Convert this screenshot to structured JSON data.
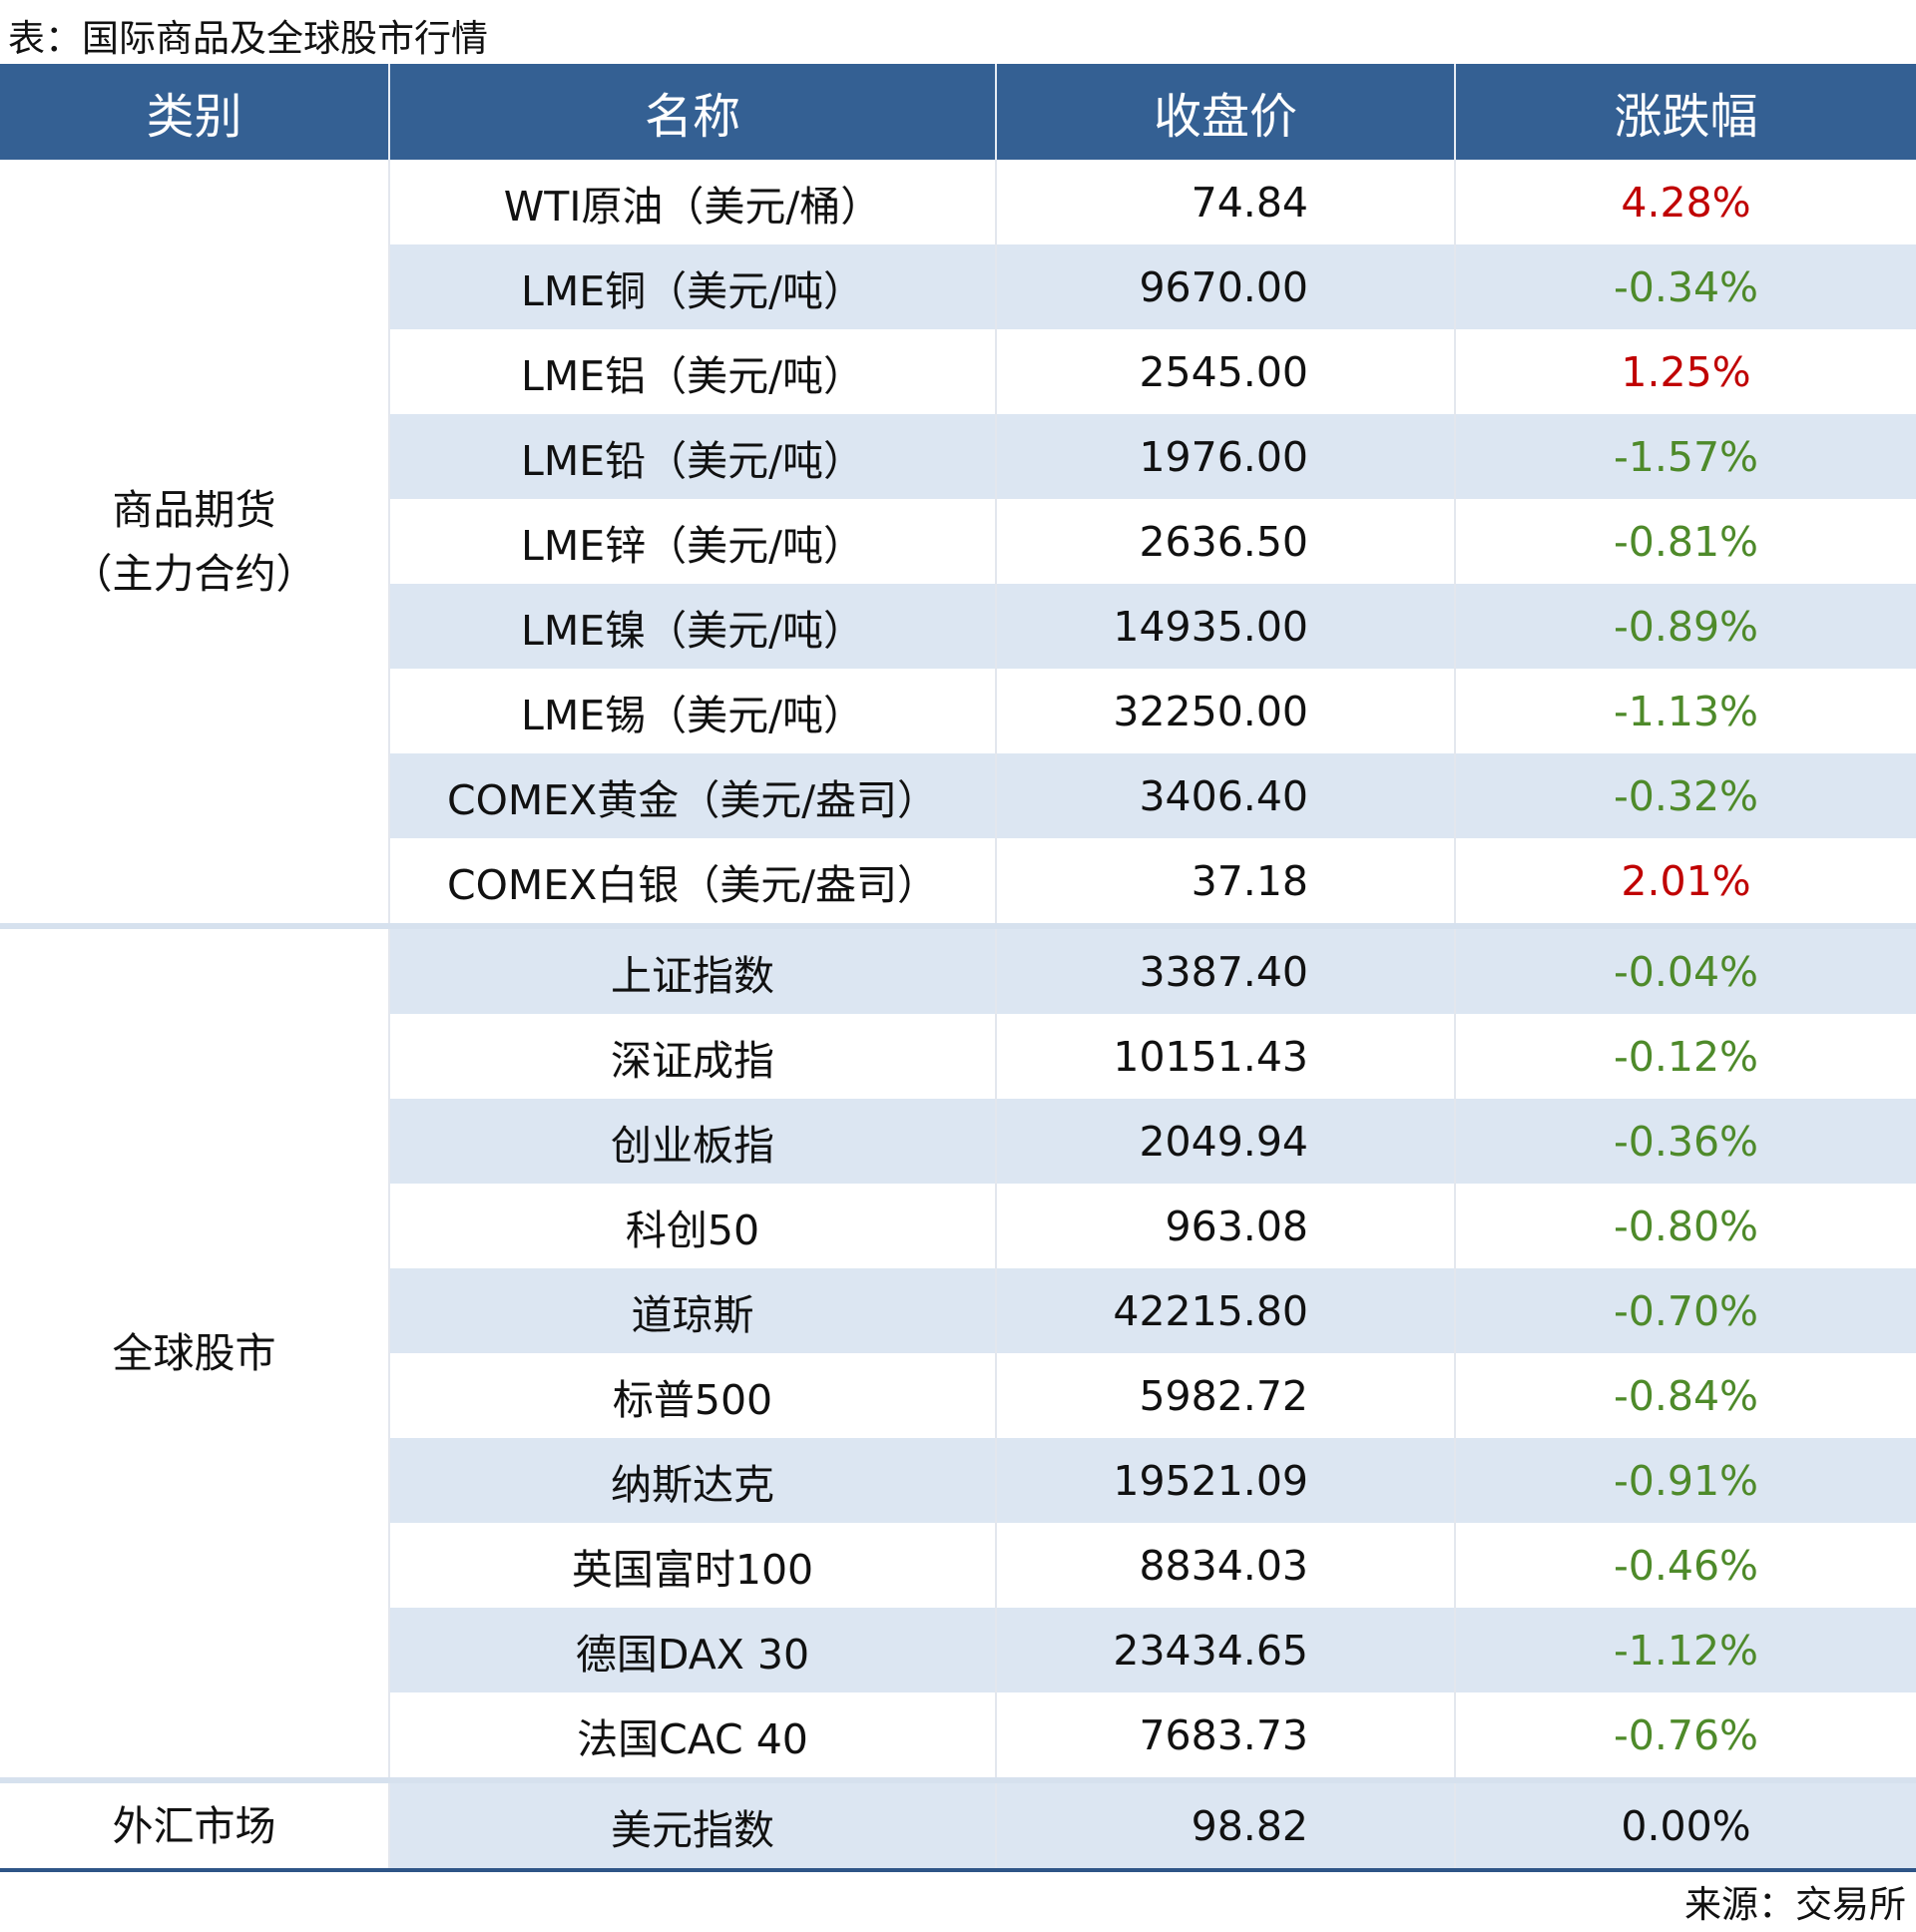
{
  "title": "表：国际商品及全球股市行情",
  "table": {
    "headers": [
      "类别",
      "名称",
      "收盘价",
      "涨跌幅"
    ],
    "groups": [
      {
        "category": "商品期货\n（主力合约）",
        "rows": [
          [
            "WTI原油（美元/桶）",
            "74.84",
            "4.28%"
          ],
          [
            "LME铜（美元/吨）",
            "9670.00",
            "-0.34%"
          ],
          [
            "LME铝（美元/吨）",
            "2545.00",
            "1.25%"
          ],
          [
            "LME铅（美元/吨）",
            "1976.00",
            "-1.57%"
          ],
          [
            "LME锌（美元/吨）",
            "2636.50",
            "-0.81%"
          ],
          [
            "LME镍（美元/吨）",
            "14935.00",
            "-0.89%"
          ],
          [
            "LME锡（美元/吨）",
            "32250.00",
            "-1.13%"
          ],
          [
            "COMEX黄金（美元/盎司）",
            "3406.40",
            "-0.32%"
          ],
          [
            "COMEX白银（美元/盎司）",
            "37.18",
            "2.01%"
          ]
        ]
      },
      {
        "category": "全球股市",
        "rows": [
          [
            "上证指数",
            "3387.40",
            "-0.04%"
          ],
          [
            "深证成指",
            "10151.43",
            "-0.12%"
          ],
          [
            "创业板指",
            "2049.94",
            "-0.36%"
          ],
          [
            "科创50",
            "963.08",
            "-0.80%"
          ],
          [
            "道琼斯",
            "42215.80",
            "-0.70%"
          ],
          [
            "标普500",
            "5982.72",
            "-0.84%"
          ],
          [
            "纳斯达克",
            "19521.09",
            "-0.91%"
          ],
          [
            "英国富时100",
            "8834.03",
            "-0.46%"
          ],
          [
            "德国DAX 30",
            "23434.65",
            "-1.12%"
          ],
          [
            "法国CAC 40",
            "7683.73",
            "-0.76%"
          ]
        ]
      },
      {
        "category": "外汇市场",
        "rows": [
          [
            "美元指数",
            "98.82",
            "0.00%"
          ]
        ]
      }
    ]
  },
  "source": "来源：交易所"
}
